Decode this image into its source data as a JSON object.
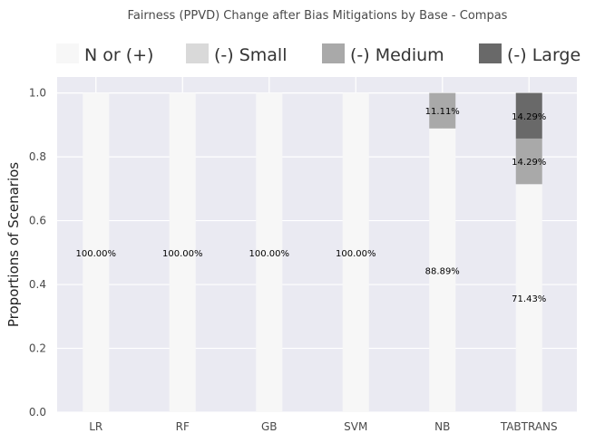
{
  "chart_data": {
    "type": "bar",
    "stacked": true,
    "title": "Fairness (PPVD) Change after Bias Mitigations by Base - Compas",
    "xlabel": "",
    "ylabel": "Proportions of Scenarios",
    "ylim": [
      0,
      1.05
    ],
    "yticks": [
      "0.0",
      "0.2",
      "0.4",
      "0.6",
      "0.8",
      "1.0"
    ],
    "ytick_values": [
      0,
      0.2,
      0.4,
      0.6,
      0.8,
      1.0
    ],
    "grid": true,
    "legend_position": "top",
    "categories": [
      "LR",
      "RF",
      "GB",
      "SVM",
      "NB",
      "TABTRANS"
    ],
    "series": [
      {
        "name": "N or (+)",
        "color": "#f7f7f7",
        "values": [
          1.0,
          1.0,
          1.0,
          1.0,
          0.8889,
          0.7143
        ],
        "labels": [
          "100.00%",
          "100.00%",
          "100.00%",
          "100.00%",
          "88.89%",
          "71.43%"
        ]
      },
      {
        "name": "(-) Small",
        "color": "#d9d9d9",
        "values": [
          0,
          0,
          0,
          0,
          0,
          0
        ],
        "labels": [
          "",
          "",
          "",
          "",
          "",
          ""
        ]
      },
      {
        "name": "(-) Medium",
        "color": "#a9a9a9",
        "values": [
          0,
          0,
          0,
          0,
          0.1111,
          0.1429
        ],
        "labels": [
          "",
          "",
          "",
          "",
          "11.11%",
          "14.29%"
        ]
      },
      {
        "name": "(-) Large",
        "color": "#696969",
        "values": [
          0,
          0,
          0,
          0,
          0,
          0.1429
        ],
        "labels": [
          "",
          "",
          "",
          "",
          "",
          "14.29%"
        ]
      }
    ]
  }
}
